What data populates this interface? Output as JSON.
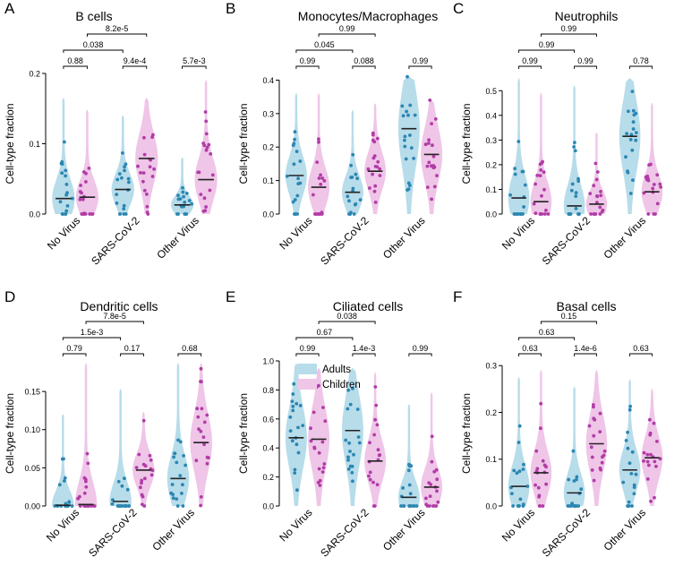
{
  "colors": {
    "adults_fill": "#b7dcea",
    "adults_point": "#2b86b2",
    "children_fill": "#efc5e8",
    "children_point": "#b13ca6"
  },
  "legend": {
    "adults": "Adults",
    "children": "Children"
  },
  "chart_data": [
    {
      "panel_letter": "A",
      "title": "B cells",
      "type": "violin",
      "ylabel": "Cell-type fraction",
      "ylim": [
        0,
        0.2
      ],
      "yticks": [
        "0.0",
        "0.1",
        "0.2"
      ],
      "categories": [
        "No Virus",
        "SARS-CoV-2",
        "Other Virus"
      ],
      "series": [
        {
          "name": "Adults",
          "medians": [
            0.022,
            0.035,
            0.013
          ],
          "maxima": [
            0.165,
            0.14,
            0.08
          ]
        },
        {
          "name": "Children",
          "medians": [
            0.024,
            0.079,
            0.049
          ],
          "maxima": [
            0.148,
            0.165,
            0.19
          ]
        }
      ],
      "pvalues": {
        "within": [
          "0.88",
          "9.4e-4",
          "5.7e-3"
        ],
        "adults_nv_vs_sars": "0.038",
        "children_nv_vs_sars": "8.2e-5"
      }
    },
    {
      "panel_letter": "B",
      "title": "Monocytes/Macrophages",
      "type": "violin",
      "ylabel": "Cell-type fraction",
      "ylim": [
        0,
        0.42
      ],
      "yticks": [
        "0.0",
        "0.1",
        "0.2",
        "0.3",
        "0.4"
      ],
      "categories": [
        "No Virus",
        "SARS-CoV-2",
        "Other Virus"
      ],
      "series": [
        {
          "name": "Adults",
          "medians": [
            0.115,
            0.065,
            0.255
          ],
          "maxima": [
            0.36,
            0.31,
            0.41
          ]
        },
        {
          "name": "Children",
          "medians": [
            0.08,
            0.128,
            0.178
          ],
          "maxima": [
            0.36,
            0.33,
            0.34
          ]
        }
      ],
      "pvalues": {
        "within": [
          "0.99",
          "0.088",
          "0.99"
        ],
        "adults_nv_vs_sars": "0.045",
        "children_nv_vs_sars": "0.99"
      }
    },
    {
      "panel_letter": "C",
      "title": "Neutrophils",
      "type": "violin",
      "ylabel": "Cell-type fraction",
      "ylim": [
        0,
        0.57
      ],
      "yticks": [
        "0.0",
        "0.1",
        "0.2",
        "0.3",
        "0.4",
        "0.5"
      ],
      "categories": [
        "No Virus",
        "SARS-CoV-2",
        "Other Virus"
      ],
      "series": [
        {
          "name": "Adults",
          "medians": [
            0.065,
            0.033,
            0.315
          ],
          "maxima": [
            0.55,
            0.52,
            0.55
          ]
        },
        {
          "name": "Children",
          "medians": [
            0.05,
            0.04,
            0.09
          ],
          "maxima": [
            0.49,
            0.33,
            0.45
          ]
        }
      ],
      "pvalues": {
        "within": [
          "0.99",
          "0.99",
          "0.78"
        ],
        "adults_nv_vs_sars": "0.99",
        "children_nv_vs_sars": "0.99"
      }
    },
    {
      "panel_letter": "D",
      "title": "Dendritic cells",
      "type": "violin",
      "ylabel": "Cell-type fraction",
      "ylim": [
        0,
        0.19
      ],
      "yticks": [
        "0.00",
        "0.05",
        "0.10",
        "0.15"
      ],
      "categories": [
        "No Virus",
        "SARS-CoV-2",
        "Other Virus"
      ],
      "series": [
        {
          "name": "Adults",
          "medians": [
            0.001,
            0.006,
            0.036
          ],
          "maxima": [
            0.12,
            0.153,
            0.187
          ]
        },
        {
          "name": "Children",
          "medians": [
            0.002,
            0.047,
            0.083
          ],
          "maxima": [
            0.187,
            0.123,
            0.187
          ]
        }
      ],
      "pvalues": {
        "within": [
          "0.79",
          "0.17",
          "0.68"
        ],
        "adults_nv_vs_sars": "1.5e-3",
        "children_nv_vs_sars": "7.8e-5"
      }
    },
    {
      "panel_letter": "E",
      "title": "Ciliated cells",
      "type": "violin",
      "ylabel": "Cell-type fraction",
      "ylim": [
        0,
        1.0
      ],
      "yticks": [
        "0.0",
        "0.2",
        "0.4",
        "0.6",
        "0.8",
        "1.0"
      ],
      "categories": [
        "No Virus",
        "SARS-CoV-2",
        "Other Virus"
      ],
      "series": [
        {
          "name": "Adults",
          "medians": [
            0.47,
            0.52,
            0.06
          ],
          "maxima": [
            0.98,
            0.95,
            0.7
          ]
        },
        {
          "name": "Children",
          "medians": [
            0.46,
            0.31,
            0.13
          ],
          "maxima": [
            0.95,
            0.92,
            0.78
          ]
        }
      ],
      "pvalues": {
        "within": [
          "0.99",
          "1.4e-3",
          "0.99"
        ],
        "adults_nv_vs_sars": "0.67",
        "children_nv_vs_sars": "0.038"
      }
    },
    {
      "panel_letter": "F",
      "title": "Basal cells",
      "type": "violin",
      "ylabel": "Cell-type fraction",
      "ylim": [
        0,
        0.31
      ],
      "yticks": [
        "0.0",
        "0.1",
        "0.2",
        "0.3"
      ],
      "categories": [
        "No Virus",
        "SARS-CoV-2",
        "Other Virus"
      ],
      "series": [
        {
          "name": "Adults",
          "medians": [
            0.042,
            0.028,
            0.077
          ],
          "maxima": [
            0.275,
            0.255,
            0.27
          ]
        },
        {
          "name": "Children",
          "medians": [
            0.071,
            0.133,
            0.103
          ],
          "maxima": [
            0.29,
            0.29,
            0.25
          ]
        }
      ],
      "pvalues": {
        "within": [
          "0.63",
          "1.4e-6",
          "0.63"
        ],
        "adults_nv_vs_sars": "0.63",
        "children_nv_vs_sars": "0.15"
      }
    }
  ]
}
